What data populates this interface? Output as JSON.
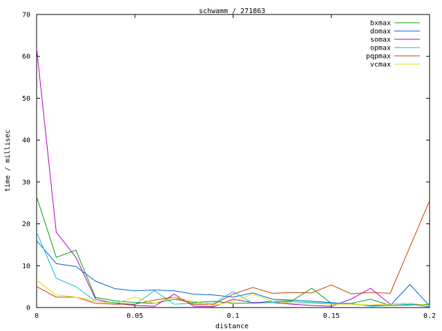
{
  "chart_data": {
    "type": "line",
    "title": "schwamm / 271863",
    "xlabel": "distance",
    "ylabel": "time / millisec",
    "xlim": [
      0,
      0.2
    ],
    "ylim": [
      0,
      70
    ],
    "xticks": [
      0,
      0.05,
      0.1,
      0.15,
      0.2
    ],
    "xtick_labels": [
      "0",
      "0.05",
      "0.1",
      "0.15",
      "0.2"
    ],
    "yticks": [
      0,
      10,
      20,
      30,
      40,
      50,
      60,
      70
    ],
    "ytick_labels": [
      "0",
      "10",
      "20",
      "30",
      "40",
      "50",
      "60",
      "70"
    ],
    "grid": false,
    "legend_position": "top-right",
    "x": [
      0,
      0.01,
      0.02,
      0.03,
      0.04,
      0.05,
      0.06,
      0.07,
      0.08,
      0.09,
      0.1,
      0.11,
      0.12,
      0.13,
      0.14,
      0.15,
      0.16,
      0.17,
      0.18,
      0.19,
      0.2
    ],
    "series": [
      {
        "name": "bxmax",
        "color": "#00a000",
        "values": [
          26.5,
          12,
          13.7,
          2.4,
          1.6,
          1.2,
          1.0,
          2.0,
          1.2,
          1.5,
          1.0,
          1.1,
          1.5,
          1.6,
          4.6,
          1.0,
          1.0,
          2.0,
          0.5,
          0.6,
          0.8
        ]
      },
      {
        "name": "domax",
        "color": "#0060d0",
        "values": [
          16,
          10.5,
          9.8,
          6.3,
          4.5,
          4.0,
          4.2,
          4.0,
          3.2,
          3.0,
          2.5,
          3.5,
          2.0,
          1.8,
          1.5,
          1.2,
          0.8,
          0.5,
          0.5,
          5.5,
          0.4
        ]
      },
      {
        "name": "somax",
        "color": "#b000c0",
        "values": [
          62,
          18,
          12,
          2.0,
          1.0,
          0.5,
          0.3,
          3.2,
          0.3,
          0.2,
          2.0,
          1.2,
          1.2,
          0.8,
          0.5,
          0.3,
          2.0,
          4.6,
          0.8,
          1.0,
          0.1
        ]
      },
      {
        "name": "opmax",
        "color": "#00c0e0",
        "values": [
          18,
          7.0,
          5.0,
          1.5,
          1.2,
          0.7,
          4.0,
          0.8,
          1.0,
          1.0,
          3.8,
          1.0,
          1.2,
          1.4,
          1.2,
          1.0,
          1.0,
          0.3,
          0.5,
          0.8,
          0.2
        ]
      },
      {
        "name": "pqpmax",
        "color": "#c04000",
        "values": [
          5.0,
          2.5,
          2.5,
          1.0,
          0.8,
          0.8,
          1.8,
          2.5,
          0.7,
          0.7,
          3.2,
          4.8,
          3.4,
          3.6,
          3.5,
          5.4,
          3.3,
          3.6,
          3.4,
          14.5,
          25.5
        ]
      },
      {
        "name": "vcmax",
        "color": "#e8d800",
        "values": [
          6.5,
          3.0,
          2.5,
          1.5,
          1.0,
          2.5,
          1.0,
          2.5,
          1.5,
          0.5,
          1.5,
          3.2,
          1.5,
          1.0,
          1.0,
          0.8,
          0.8,
          0.6,
          0.8,
          1.0,
          0.5
        ]
      }
    ]
  }
}
